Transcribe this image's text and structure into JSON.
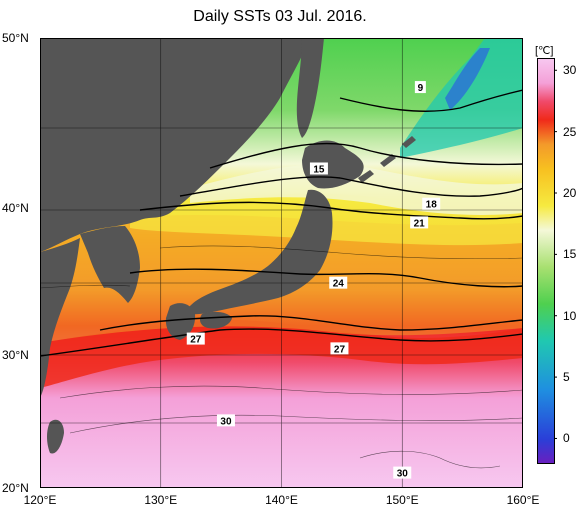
{
  "title": "Daily SSTs 03 Jul. 2016.",
  "lat_ticks": [
    {
      "label": "50°N",
      "lat": 50
    },
    {
      "label": "40°N",
      "lat": 40
    },
    {
      "label": "30°N",
      "lat": 30
    },
    {
      "label": "20°N",
      "lat": 20
    }
  ],
  "lon_ticks": [
    {
      "label": "120°E",
      "lon": 120
    },
    {
      "label": "130°E",
      "lon": 130
    },
    {
      "label": "140°E",
      "lon": 140
    },
    {
      "label": "150°E",
      "lon": 150
    },
    {
      "label": "160°E",
      "lon": 160
    }
  ],
  "colorbar": {
    "unit": "[℃]",
    "min": -2,
    "max": 31,
    "ticks": [
      {
        "label": "30",
        "value": 30
      },
      {
        "label": "25",
        "value": 25
      },
      {
        "label": "20",
        "value": 20
      },
      {
        "label": "15",
        "value": 15
      },
      {
        "label": "10",
        "value": 10
      },
      {
        "label": "5",
        "value": 5
      },
      {
        "label": "0",
        "value": 0
      }
    ],
    "stops": [
      {
        "value": -2,
        "color": "#6a1fbf"
      },
      {
        "value": 0,
        "color": "#2a3fd8"
      },
      {
        "value": 4,
        "color": "#1f8fe0"
      },
      {
        "value": 8,
        "color": "#20c8b0"
      },
      {
        "value": 11,
        "color": "#4fd04f"
      },
      {
        "value": 14,
        "color": "#a8e070"
      },
      {
        "value": 17,
        "color": "#f4f8d8"
      },
      {
        "value": 19,
        "color": "#f6ea40"
      },
      {
        "value": 22,
        "color": "#f7c020"
      },
      {
        "value": 24,
        "color": "#f39a2a"
      },
      {
        "value": 26,
        "color": "#f02a1a"
      },
      {
        "value": 27.5,
        "color": "#f04a6a"
      },
      {
        "value": 29,
        "color": "#f4a0d8"
      },
      {
        "value": 31,
        "color": "#f7c8f0"
      }
    ]
  },
  "contour_labels": [
    {
      "text": "9",
      "lon": 151.5,
      "lat": 47.3
    },
    {
      "text": "15",
      "lon": 143.1,
      "lat": 42.5
    },
    {
      "text": "18",
      "lon": 152.4,
      "lat": 40.3
    },
    {
      "text": "21",
      "lon": 151.4,
      "lat": 39.1
    },
    {
      "text": "24",
      "lon": 144.7,
      "lat": 35.1
    },
    {
      "text": "27",
      "lon": 132.9,
      "lat": 31.2
    },
    {
      "text": "27",
      "lon": 144.8,
      "lat": 30.5
    },
    {
      "text": "30",
      "lon": 135.4,
      "lat": 25.2
    },
    {
      "text": "30",
      "lon": 150.0,
      "lat": 21.2
    }
  ],
  "colors": {
    "land": "#555555",
    "grid": "#000000"
  }
}
